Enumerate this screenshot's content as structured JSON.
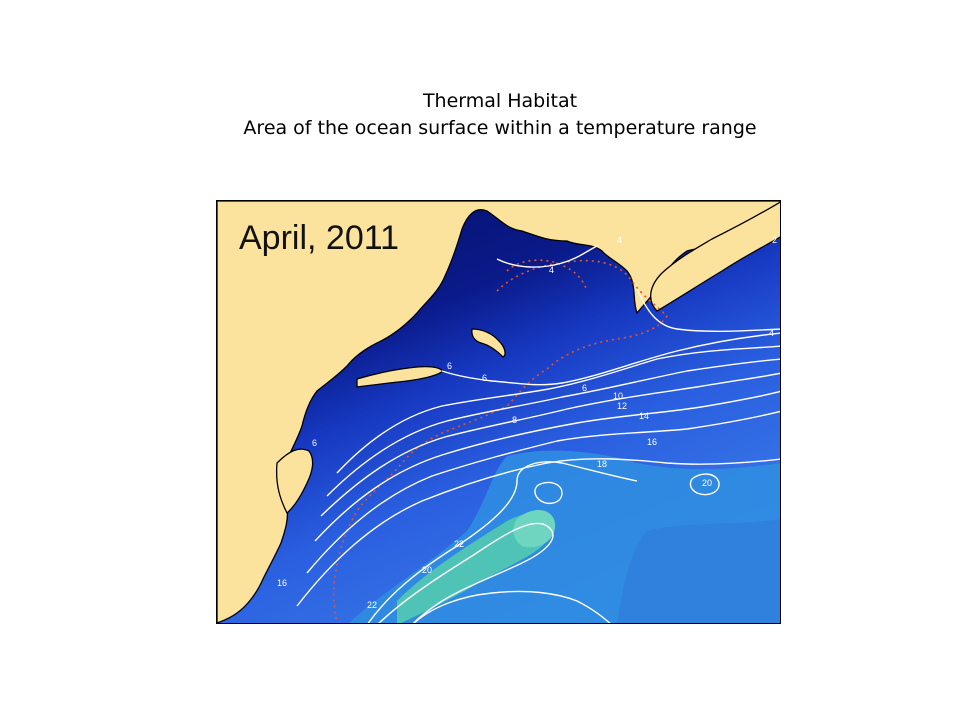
{
  "slide": {
    "title_line1": "Thermal Habitat",
    "title_line2": "Area of the ocean surface within a temperature range"
  },
  "map": {
    "date_label": "April, 2011",
    "land_color": "#fbe39d",
    "ocean_cold_color": "#050d66",
    "ocean_mid_color": "#1c4fd8",
    "ocean_warm_color": "#45c0b0",
    "isotherm_color": "#ffffff",
    "habitat_boundary_color": "#e2542c",
    "isotherm_labels": [
      "2",
      "4",
      "4",
      "4",
      "6",
      "6",
      "6",
      "6",
      "8",
      "10",
      "12",
      "14",
      "16",
      "16",
      "18",
      "20",
      "20",
      "22",
      "22"
    ]
  }
}
